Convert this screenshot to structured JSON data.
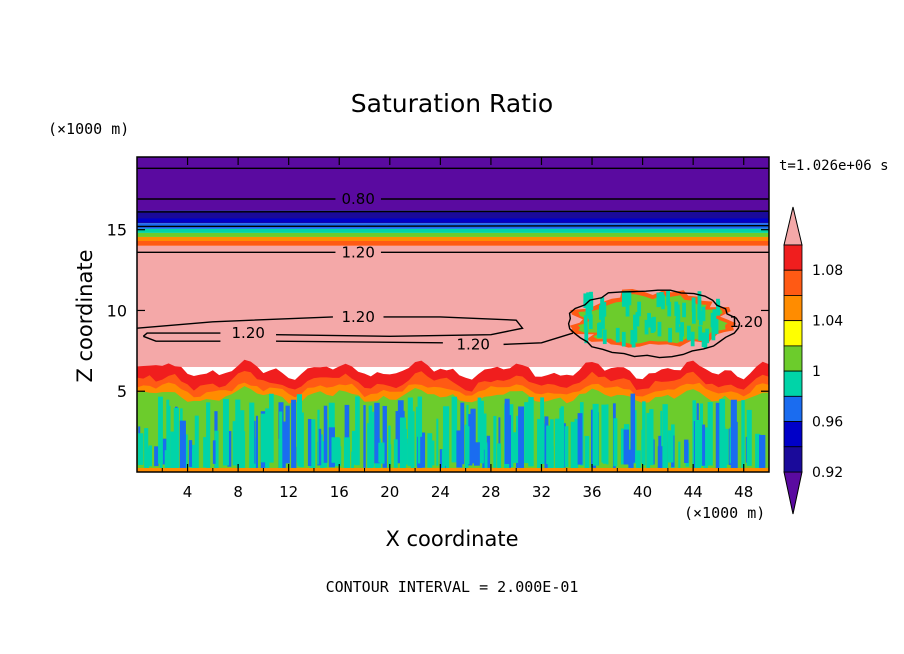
{
  "chart_data": {
    "type": "heatmap",
    "title": "Saturation Ratio",
    "xlabel": "X coordinate",
    "ylabel": "Z coordinate",
    "x_unit": "(×1000 m)",
    "y_unit": "(×1000 m)",
    "time_label": "t=1.026e+06 s",
    "footer": "CONTOUR INTERVAL = 2.000E-01",
    "xlim": [
      0,
      50
    ],
    "ylim": [
      0,
      19.5
    ],
    "xticks": [
      4,
      8,
      12,
      16,
      20,
      24,
      28,
      32,
      36,
      40,
      44,
      48
    ],
    "yticks": [
      5,
      10,
      15
    ],
    "colorbar": {
      "labels": [
        "1.08",
        "1.04",
        "1",
        "0.96",
        "0.92"
      ],
      "label_values": [
        1.08,
        1.04,
        1.0,
        0.96,
        0.92
      ],
      "levels": [
        0.92,
        0.94,
        0.96,
        0.98,
        1.0,
        1.02,
        1.04,
        1.06,
        1.08,
        1.1
      ],
      "colors": [
        "#5a0aa0",
        "#1a0a9a",
        "#0000c8",
        "#1a6cf0",
        "#00d4a8",
        "#6ccc2c",
        "#ffff00",
        "#ff8c00",
        "#ff5a14",
        "#f01e1e",
        "#f4a8a8"
      ],
      "extend": "both"
    },
    "contour_labels": [
      {
        "text": "0.80",
        "x": 17.5,
        "z": 16.9
      },
      {
        "text": "1.20",
        "x": 17.5,
        "z": 13.6
      },
      {
        "text": "1.20",
        "x": 17.5,
        "z": 9.6
      },
      {
        "text": "1.20",
        "x": 8.8,
        "z": 8.6
      },
      {
        "text": "1.20",
        "x": 26.6,
        "z": 7.9
      },
      {
        "text": "1.20",
        "x": 48.2,
        "z": 9.3
      }
    ],
    "fields": {
      "top_layer_above": {
        "z_from": 16.2,
        "z_to": 19.5,
        "value": 0.9
      },
      "dark_band": {
        "z_from": 15.4,
        "z_to": 16.2,
        "value": 0.92
      },
      "transition": {
        "z_from": 14.0,
        "z_to": 15.4,
        "value": 1.0
      },
      "supersaturated_layer": {
        "z_from": 6.5,
        "z_to": 14.0,
        "value": 1.12
      },
      "boundary_layer": {
        "z_from": 0,
        "z_to": 6.3,
        "value": 1.0
      },
      "cloud_patch": {
        "x_from": 34.5,
        "x_to": 47,
        "z_from": 7.2,
        "z_to": 11.2,
        "value": 1.0
      }
    }
  }
}
